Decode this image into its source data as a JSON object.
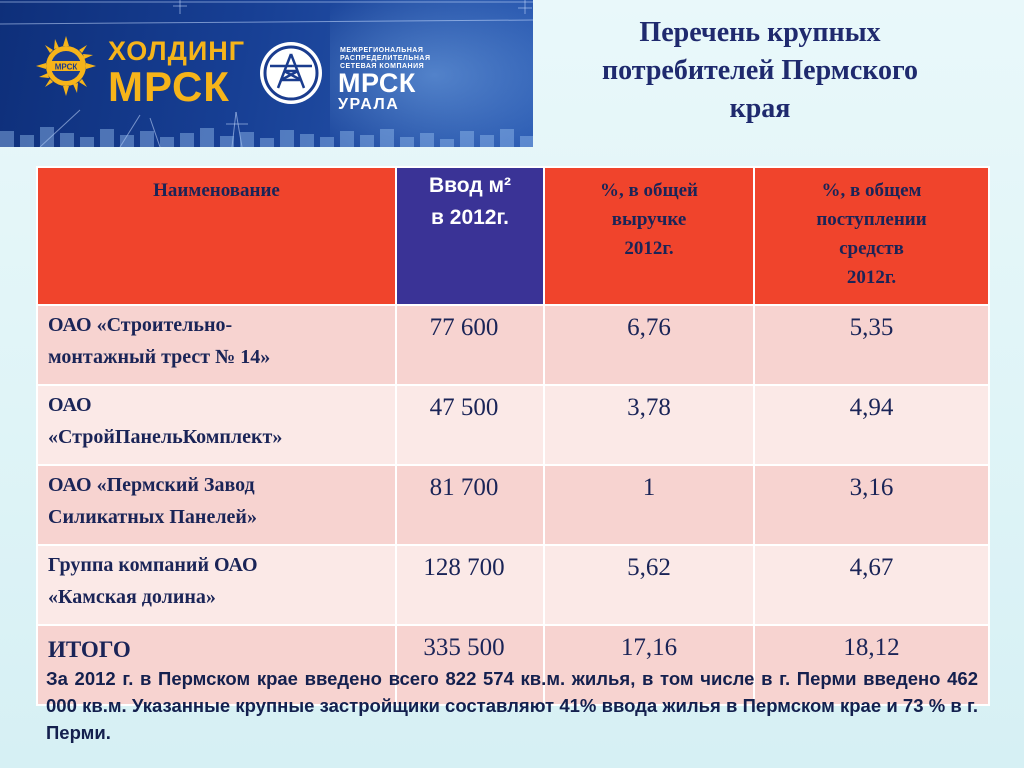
{
  "header": {
    "logo_left": {
      "line1": "ХОЛДИНГ",
      "line2": "МРСК",
      "badge": "МРСК",
      "icon": "holding-mrsk-emblem-icon"
    },
    "logo_right": {
      "small_lines": [
        "МЕЖРЕГИОНАЛЬНАЯ",
        "РАСПРЕДЕЛИТЕЛЬНАЯ",
        "СЕТЕВАЯ КОМПАНИЯ"
      ],
      "main": "МРСК",
      "sub": "УРАЛА",
      "icon": "mrsk-urala-emblem-icon"
    },
    "colors": {
      "banner": "#173f94",
      "logo_gold": "#f6b41a"
    }
  },
  "title": {
    "line1": "Перечень крупных",
    "line2": "потребителей Пермского",
    "line3": "края"
  },
  "table": {
    "headers": {
      "name": "Наименование",
      "input_line1": "Ввод м²",
      "input_line2": "в 2012г.",
      "revenue_share": [
        "%, в общей",
        "выручке",
        "2012г."
      ],
      "receipts_share": [
        "%, в общем",
        "поступлении",
        "средств",
        "2012г."
      ]
    },
    "rows": [
      {
        "name_line1": "ОАО «Строительно-",
        "name_line2": "монтажный трест № 14»",
        "input": "77 600",
        "revenue_share": "6,76",
        "receipts_share": "5,35"
      },
      {
        "name_line1": "ОАО",
        "name_line2": "«СтройПанельКомплект»",
        "input": "47 500",
        "revenue_share": "3,78",
        "receipts_share": "4,94"
      },
      {
        "name_line1": "ОАО «Пермский Завод",
        "name_line2": "Силикатных Панелей»",
        "input": "81 700",
        "revenue_share": "1",
        "receipts_share": "3,16"
      },
      {
        "name_line1": "Группа компаний ОАО",
        "name_line2": "«Камская долина»",
        "input": "128 700",
        "revenue_share": "5,62",
        "receipts_share": "4,67"
      }
    ],
    "total": {
      "name": "ИТОГО",
      "input": "335 500",
      "revenue_share": "17,16",
      "receipts_share": "18,12"
    },
    "colors": {
      "header_red": "#f0442c",
      "header_blue": "#3a3396",
      "row_dark": "#f7d3d0",
      "row_light": "#fbe9e7"
    }
  },
  "footnote": "За 2012 г. в Пермском крае введено всего 822 574 кв.м. жилья, в том числе в г. Перми введено 462 000 кв.м. Указанные крупные застройщики составляют 41% ввода жилья в Пермском крае и 73 % в г. Перми."
}
